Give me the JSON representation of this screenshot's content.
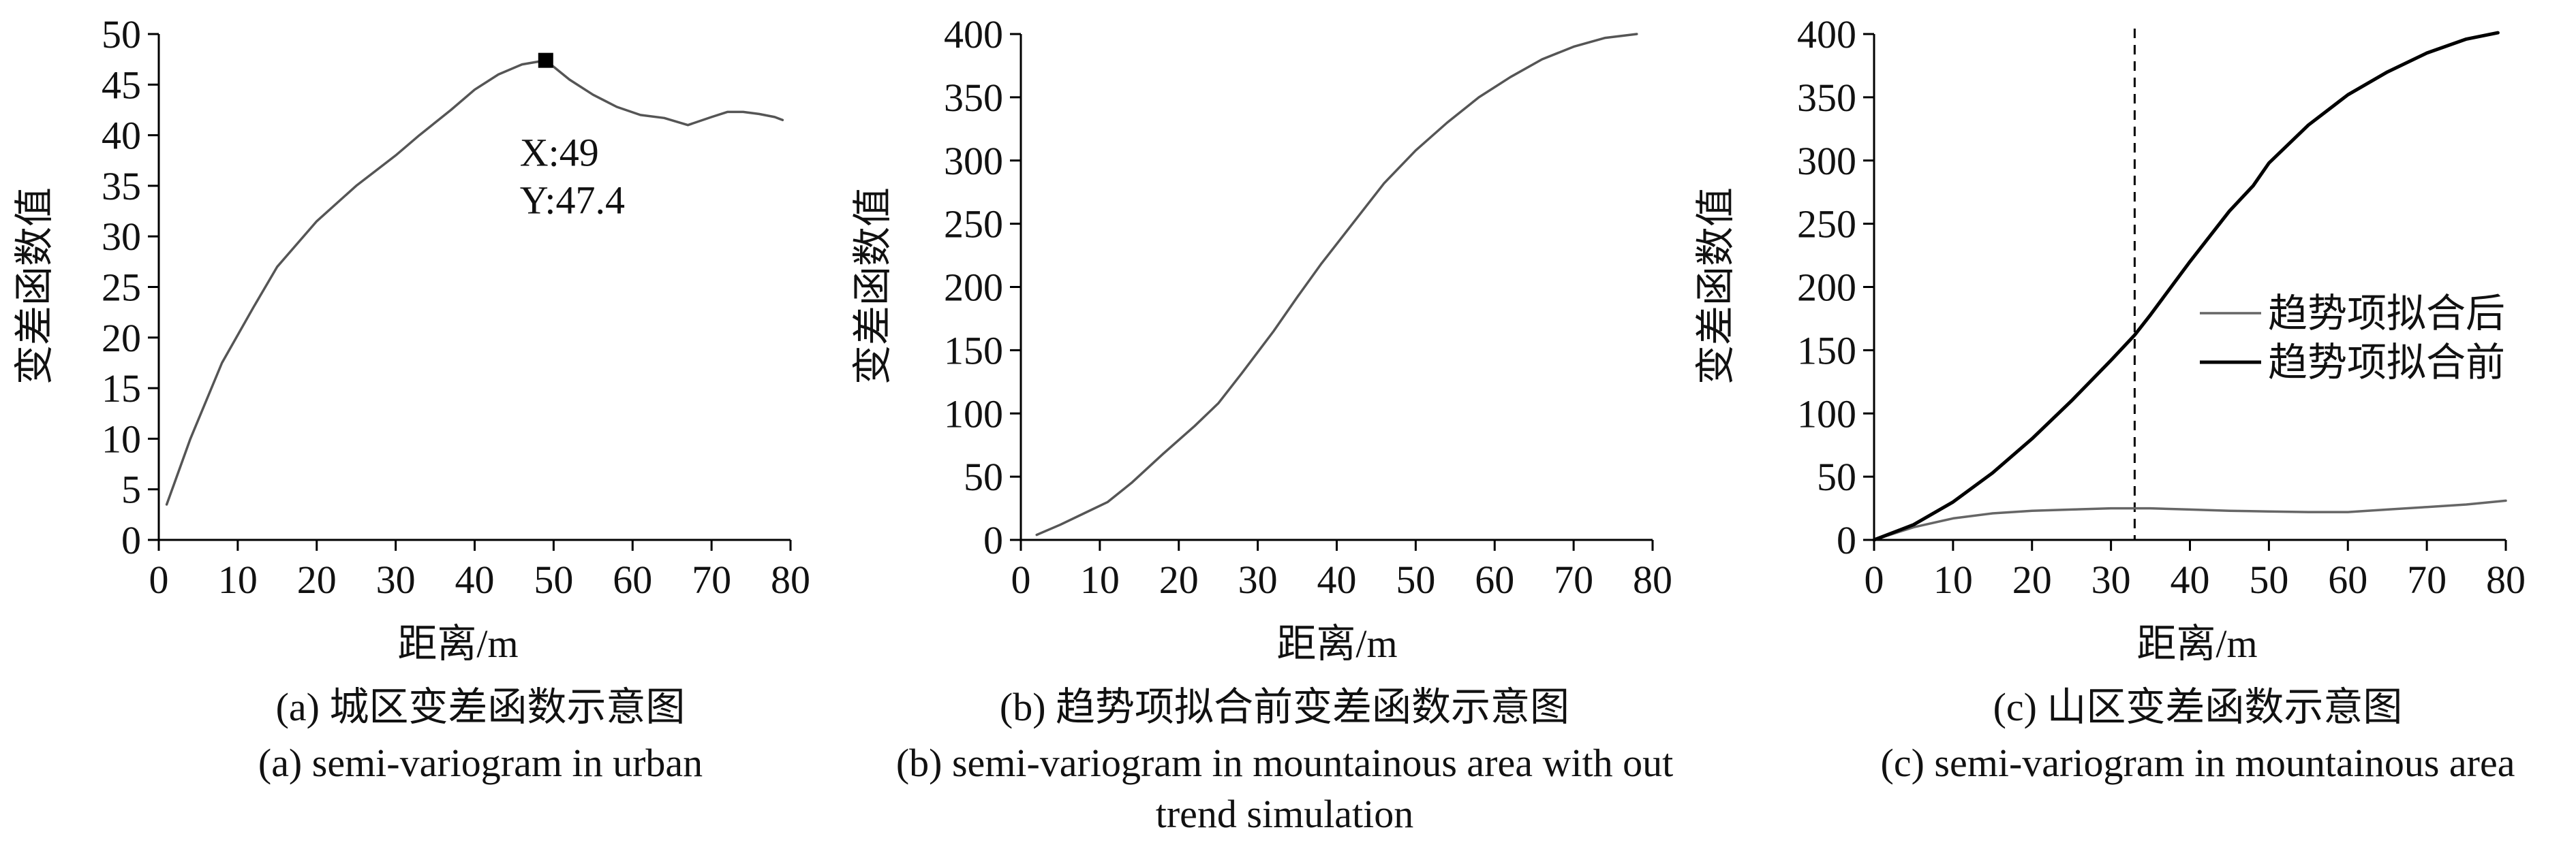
{
  "chart_data": [
    {
      "type": "line",
      "xlabel": "距离/m",
      "ylabel": "变差函数值",
      "xlim": [
        0,
        80
      ],
      "ylim": [
        0,
        50
      ],
      "xticks": [
        0,
        10,
        20,
        30,
        40,
        50,
        60,
        70,
        80
      ],
      "yticks": [
        0,
        5,
        10,
        15,
        20,
        25,
        30,
        35,
        40,
        45,
        50
      ],
      "caption_zh": "(a) 城区变差函数示意图",
      "caption_en": "(a) semi-variogram in urban",
      "series": [
        {
          "name": "",
          "color": "#555555",
          "x": [
            1,
            4,
            8,
            12,
            15,
            20,
            25,
            30,
            33,
            37,
            40,
            43,
            46,
            49,
            52,
            55,
            58,
            61,
            64,
            67,
            70,
            72,
            74,
            76,
            78,
            79
          ],
          "y": [
            3.5,
            10,
            17.5,
            23,
            27,
            31.5,
            35,
            38,
            40,
            42.5,
            44.5,
            46,
            47,
            47.4,
            45.5,
            44,
            42.8,
            42,
            41.7,
            41,
            41.8,
            42.3,
            42.3,
            42.1,
            41.8,
            41.5
          ]
        }
      ],
      "marker": {
        "x": 49,
        "y": 47.4,
        "label_x": "X:49",
        "label_y": "Y:47.4"
      }
    },
    {
      "type": "line",
      "xlabel": "距离/m",
      "ylabel": "变差函数值",
      "xlim": [
        0,
        80
      ],
      "ylim": [
        0,
        400
      ],
      "xticks": [
        0,
        10,
        20,
        30,
        40,
        50,
        60,
        70,
        80
      ],
      "yticks": [
        0,
        50,
        100,
        150,
        200,
        250,
        300,
        350,
        400
      ],
      "caption_zh": "(b) 趋势项拟合前变差函数示意图",
      "caption_en_line1": "(b) semi-variogram in mountainous area with out",
      "caption_en_line2": "trend simulation",
      "series": [
        {
          "name": "",
          "color": "#555555",
          "x": [
            2,
            5,
            8,
            11,
            14,
            18,
            22,
            25,
            28,
            32,
            35,
            38,
            42,
            46,
            50,
            54,
            58,
            62,
            66,
            70,
            74,
            78
          ],
          "y": [
            4,
            12,
            21,
            30,
            45,
            68,
            90,
            108,
            132,
            165,
            192,
            218,
            250,
            282,
            308,
            330,
            350,
            366,
            380,
            390,
            397,
            400
          ]
        }
      ]
    },
    {
      "type": "line",
      "xlabel": "距离/m",
      "ylabel": "变差函数值",
      "xlim": [
        0,
        80
      ],
      "ylim": [
        0,
        400
      ],
      "xticks": [
        0,
        10,
        20,
        30,
        40,
        50,
        60,
        70,
        80
      ],
      "yticks": [
        0,
        50,
        100,
        150,
        200,
        250,
        300,
        350,
        400
      ],
      "caption_zh": "(c) 山区变差函数示意图",
      "caption_en": "(c) semi-variogram in mountainous area",
      "vline_x": 33,
      "legend": {
        "placement": "right"
      },
      "series": [
        {
          "name": "趋势项拟合后",
          "color": "#666666",
          "x": [
            0,
            5,
            10,
            15,
            20,
            25,
            30,
            35,
            40,
            45,
            50,
            55,
            60,
            65,
            70,
            75,
            80
          ],
          "y": [
            0,
            10,
            17,
            21,
            23,
            24,
            25,
            25,
            24,
            23,
            22.5,
            22,
            22,
            24,
            26,
            28,
            31
          ]
        },
        {
          "name": "趋势项拟合前",
          "color": "#000000",
          "x": [
            0,
            5,
            10,
            15,
            20,
            25,
            30,
            33,
            35,
            40,
            45,
            48,
            50,
            55,
            60,
            65,
            70,
            75,
            79
          ],
          "y": [
            0,
            12,
            30,
            53,
            80,
            110,
            142,
            162,
            178,
            220,
            260,
            280,
            298,
            328,
            352,
            370,
            385,
            396,
            401
          ]
        }
      ]
    }
  ]
}
